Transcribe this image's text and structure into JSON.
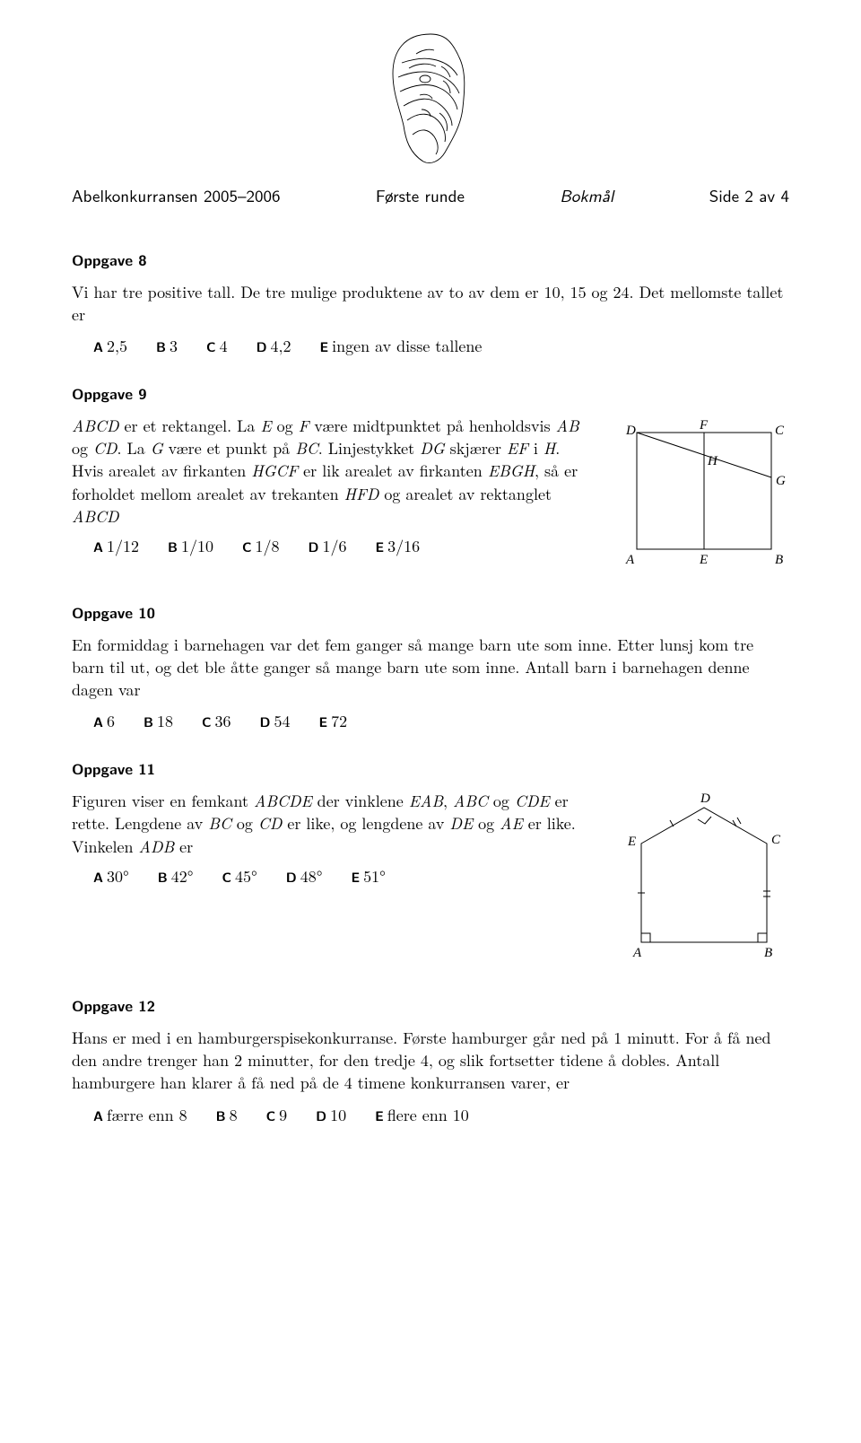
{
  "header": {
    "competition": "Abelkonkurransen 2005–2006",
    "round": "Første runde",
    "lang": "Bokmål",
    "page": "Side 2 av 4"
  },
  "p8": {
    "title": "Oppgave 8",
    "text": "Vi har tre positive tall. De tre mulige produktene av to av dem er 10, 15 og 24. Det mellomste tallet er",
    "options": {
      "A": "2,5",
      "B": "3",
      "C": "4",
      "D": "4,2",
      "E": "ingen av disse tallene"
    }
  },
  "p9": {
    "title": "Oppgave 9",
    "text_html": "<span class=\"italic\">ABCD</span> er et rektangel. La <span class=\"italic\">E</span> og <span class=\"italic\">F</span> være midtpunktet på henholdsvis <span class=\"italic\">AB</span> og <span class=\"italic\">CD</span>. La <span class=\"italic\">G</span> være et punkt på <span class=\"italic\">BC</span>. Linjestykket <span class=\"italic\">DG</span> skjærer <span class=\"italic\">EF</span> i <span class=\"italic\">H</span>. Hvis arealet av firkanten <span class=\"italic\">HGCF</span> er lik arealet av firkanten <span class=\"italic\">EBGH</span>, så er forholdet mellom arealet av trekanten <span class=\"italic\">HFD</span> og arealet av rektanglet <span class=\"italic\">ABCD</span>",
    "options": {
      "A": "1/12",
      "B": "1/10",
      "C": "1/8",
      "D": "1/6",
      "E": "3/16"
    },
    "figure": {
      "labels": {
        "D": "D",
        "F": "F",
        "C": "C",
        "H": "H",
        "G": "G",
        "A": "A",
        "E": "E",
        "B": "B"
      }
    }
  },
  "p10": {
    "title": "Oppgave 10",
    "text": "En formiddag i barnehagen var det fem ganger så mange barn ute som inne. Etter lunsj kom tre barn til ut, og det ble åtte ganger så mange barn ute som inne. Antall barn i barnehagen denne dagen var",
    "options": {
      "A": "6",
      "B": "18",
      "C": "36",
      "D": "54",
      "E": "72"
    }
  },
  "p11": {
    "title": "Oppgave 11",
    "text_html": "Figuren viser en femkant <span class=\"italic\">ABCDE</span> der vinklene <span class=\"italic\">EAB</span>, <span class=\"italic\">ABC</span> og <span class=\"italic\">CDE</span> er rette. Lengdene av <span class=\"italic\">BC</span> og <span class=\"italic\">CD</span> er like, og lengdene av <span class=\"italic\">DE</span> og <span class=\"italic\">AE</span> er like. Vinkelen <span class=\"italic\">ADB</span> er",
    "options": {
      "A": "30°",
      "B": "42°",
      "C": "45°",
      "D": "48°",
      "E": "51°"
    },
    "figure": {
      "labels": {
        "A": "A",
        "B": "B",
        "C": "C",
        "D": "D",
        "E": "E"
      }
    }
  },
  "p12": {
    "title": "Oppgave 12",
    "text": "Hans er med i en hamburgerspisekonkurranse. Første hamburger går ned på 1 minutt. For å få ned den andre trenger han 2 minutter, for den tredje 4, og slik fortsetter tidene å dobles. Antall hamburgere han klarer å få ned på de 4 timene konkurransen varer, er",
    "options": {
      "A": "færre enn 8",
      "B": "8",
      "C": "9",
      "D": "10",
      "E": "flere enn 10"
    }
  },
  "colors": {
    "text": "#000000",
    "background": "#ffffff",
    "stroke": "#000000"
  }
}
